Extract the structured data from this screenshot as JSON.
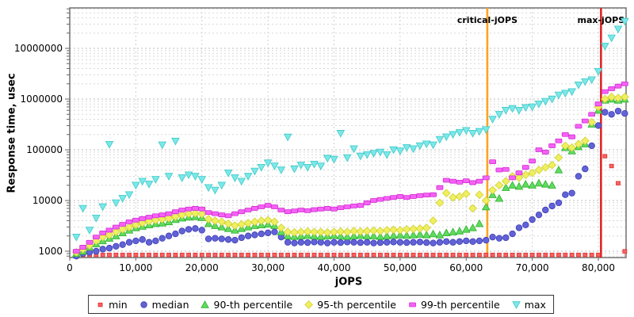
{
  "chart_data": {
    "type": "scatter",
    "title": "",
    "xlabel": "jOPS",
    "ylabel": "Response time, usec",
    "y_scale": "log",
    "x_range": [
      0,
      84200
    ],
    "y_range": [
      750,
      63000000
    ],
    "grid": true,
    "legend_position": "bottom",
    "x_tick_values": [
      0,
      10000,
      20000,
      30000,
      40000,
      50000,
      60000,
      70000,
      80000
    ],
    "x_tick_labels": [
      "0",
      "10,000",
      "20,000",
      "30,000",
      "40,000",
      "50,000",
      "60,000",
      "70,000",
      "80,000"
    ],
    "y_tick_values": [
      1000,
      10000,
      100000,
      1000000,
      10000000
    ],
    "y_tick_labels": [
      "1000",
      "10000",
      "100000",
      "1000000",
      "10000000"
    ],
    "vlines": [
      {
        "name": "critical-jops",
        "label": "critical-jOPS",
        "jops": 63200,
        "color": "#FFA41C"
      },
      {
        "name": "max-jops",
        "label": "max-jOPS",
        "jops": 80400,
        "color": "#E02525"
      }
    ],
    "jops": [
      1000,
      2000,
      3000,
      4000,
      5000,
      6000,
      7000,
      8000,
      9000,
      10000,
      11000,
      12000,
      13000,
      14000,
      15000,
      16000,
      17000,
      18000,
      19000,
      20000,
      21000,
      22000,
      23000,
      24000,
      25000,
      26000,
      27000,
      28000,
      29000,
      30000,
      31000,
      32000,
      33000,
      34000,
      35000,
      36000,
      37000,
      38000,
      39000,
      40000,
      41000,
      42000,
      43000,
      44000,
      45000,
      46000,
      47000,
      48000,
      49000,
      50000,
      51000,
      52000,
      53000,
      54000,
      55000,
      56000,
      57000,
      58000,
      59000,
      60000,
      61000,
      62000,
      63000,
      64000,
      65000,
      66000,
      67000,
      68000,
      69000,
      70000,
      71000,
      72000,
      73000,
      74000,
      75000,
      76000,
      77000,
      78000,
      79000,
      80000,
      81000,
      82000,
      83000,
      84000
    ],
    "series": [
      {
        "name": "min",
        "label": "min",
        "shape": "square",
        "color": "#F56262",
        "stroke": "#E03030",
        "values": [
          850,
          850,
          850,
          850,
          850,
          850,
          850,
          850,
          850,
          850,
          850,
          850,
          850,
          850,
          850,
          850,
          850,
          850,
          850,
          850,
          850,
          850,
          850,
          850,
          850,
          850,
          850,
          850,
          850,
          850,
          850,
          850,
          850,
          850,
          850,
          850,
          850,
          850,
          850,
          850,
          850,
          850,
          850,
          850,
          850,
          850,
          850,
          850,
          850,
          850,
          850,
          850,
          850,
          850,
          850,
          850,
          850,
          850,
          850,
          850,
          850,
          850,
          850,
          850,
          850,
          850,
          850,
          850,
          850,
          850,
          850,
          850,
          850,
          850,
          850,
          850,
          850,
          850,
          850,
          850,
          75000,
          48000,
          22000,
          1000
        ]
      },
      {
        "name": "median",
        "label": "median",
        "shape": "circle",
        "color": "#6262D8",
        "stroke": "#3C3CB0",
        "values": [
          800,
          900,
          950,
          1000,
          1100,
          1150,
          1250,
          1350,
          1500,
          1600,
          1700,
          1500,
          1600,
          1800,
          2000,
          2200,
          2500,
          2700,
          2800,
          2600,
          1750,
          1800,
          1750,
          1700,
          1650,
          1850,
          2000,
          2100,
          2200,
          2300,
          2400,
          1900,
          1500,
          1450,
          1500,
          1480,
          1520,
          1500,
          1450,
          1500,
          1480,
          1520,
          1500,
          1480,
          1500,
          1450,
          1480,
          1500,
          1520,
          1500,
          1480,
          1500,
          1520,
          1480,
          1450,
          1500,
          1550,
          1500,
          1550,
          1600,
          1550,
          1600,
          1650,
          1900,
          1800,
          1850,
          2200,
          2900,
          3300,
          4200,
          5200,
          6500,
          7800,
          9000,
          13000,
          14000,
          30000,
          42000,
          120000,
          300000,
          550000,
          500000,
          580000,
          520000
        ]
      },
      {
        "name": "p90",
        "label": "90-th percentile",
        "shape": "triangle-up",
        "color": "#5FDB5F",
        "stroke": "#2FAF2F",
        "values": [
          900,
          1000,
          1200,
          1400,
          1600,
          1800,
          2000,
          2300,
          2600,
          2900,
          3100,
          3300,
          3500,
          3600,
          3800,
          4200,
          4500,
          4700,
          4800,
          4600,
          3500,
          3200,
          3000,
          2800,
          2600,
          2800,
          3000,
          3200,
          3300,
          3400,
          3200,
          2400,
          2000,
          1950,
          2000,
          2050,
          2000,
          1950,
          2000,
          2050,
          2000,
          1950,
          2000,
          2050,
          2000,
          2000,
          1950,
          2000,
          2050,
          2100,
          2050,
          2100,
          2150,
          2100,
          2200,
          2100,
          2300,
          2400,
          2500,
          2700,
          2900,
          3500,
          7500,
          13000,
          11000,
          18000,
          20000,
          19000,
          21000,
          20000,
          22000,
          21000,
          20000,
          40000,
          110000,
          95000,
          115000,
          130000,
          320000,
          600000,
          950000,
          1000000,
          950000,
          1000000
        ]
      },
      {
        "name": "p95",
        "label": "95-th percentile",
        "shape": "diamond",
        "color": "#EFEF60",
        "stroke": "#CFCF30",
        "values": [
          950,
          1100,
          1300,
          1600,
          1900,
          2100,
          2400,
          2700,
          3000,
          3300,
          3600,
          3900,
          4100,
          4300,
          4500,
          4800,
          5200,
          5500,
          5600,
          5400,
          4300,
          4000,
          3800,
          3500,
          3200,
          3400,
          3600,
          3800,
          4000,
          4100,
          3800,
          2900,
          2400,
          2350,
          2400,
          2450,
          2400,
          2400,
          2350,
          2400,
          2450,
          2400,
          2500,
          2450,
          2500,
          2550,
          2500,
          2600,
          2650,
          2600,
          2700,
          2750,
          2800,
          2900,
          4000,
          9000,
          14000,
          11500,
          12000,
          13500,
          7000,
          13000,
          10000,
          16000,
          20000,
          24000,
          30000,
          28000,
          32000,
          35000,
          40000,
          45000,
          50000,
          70000,
          120000,
          110000,
          130000,
          150000,
          350000,
          700000,
          1000000,
          1100000,
          1050000,
          1100000
        ]
      },
      {
        "name": "p99",
        "label": "99-th percentile",
        "shape": "hbar",
        "color": "#F463F4",
        "stroke": "#D32BD3",
        "values": [
          1000,
          1200,
          1500,
          1900,
          2300,
          2600,
          3000,
          3400,
          3800,
          4100,
          4400,
          4700,
          5000,
          5200,
          5500,
          6000,
          6500,
          6800,
          7000,
          6800,
          5800,
          5500,
          5200,
          5000,
          5500,
          6000,
          6500,
          7000,
          7500,
          8000,
          7500,
          6500,
          6000,
          6200,
          6500,
          6300,
          6600,
          6800,
          7000,
          6800,
          7200,
          7500,
          7800,
          8000,
          9000,
          10000,
          10500,
          11000,
          11500,
          12000,
          11500,
          12000,
          12500,
          12800,
          13000,
          18000,
          25000,
          24000,
          23000,
          24500,
          22500,
          24000,
          28000,
          58000,
          40000,
          41000,
          28000,
          35000,
          45000,
          60000,
          100000,
          90000,
          120000,
          150000,
          200000,
          180000,
          290000,
          370000,
          500000,
          800000,
          1400000,
          1600000,
          1800000,
          2000000
        ]
      },
      {
        "name": "max",
        "label": "max",
        "shape": "triangle-down",
        "color": "#7CE8E8",
        "stroke": "#3CC8C8",
        "values": [
          1900,
          7000,
          2600,
          4500,
          7500,
          128000,
          9000,
          11000,
          13000,
          20000,
          24000,
          21000,
          26000,
          125000,
          30000,
          148000,
          28000,
          32000,
          30000,
          26000,
          18000,
          16000,
          20000,
          35000,
          28000,
          24000,
          30000,
          38000,
          45000,
          55000,
          48000,
          40000,
          178000,
          42000,
          50000,
          45000,
          52000,
          48000,
          68000,
          65000,
          211000,
          70000,
          105000,
          75000,
          80000,
          85000,
          90000,
          80000,
          100000,
          95000,
          110000,
          105000,
          120000,
          130000,
          125000,
          160000,
          180000,
          200000,
          220000,
          240000,
          210000,
          230000,
          250000,
          400000,
          500000,
          600000,
          650000,
          600000,
          680000,
          700000,
          800000,
          900000,
          1000000,
          1200000,
          1300000,
          1400000,
          1900000,
          2200000,
          2400000,
          3500000,
          11000000,
          16000000,
          24000000,
          34000000
        ]
      }
    ]
  }
}
